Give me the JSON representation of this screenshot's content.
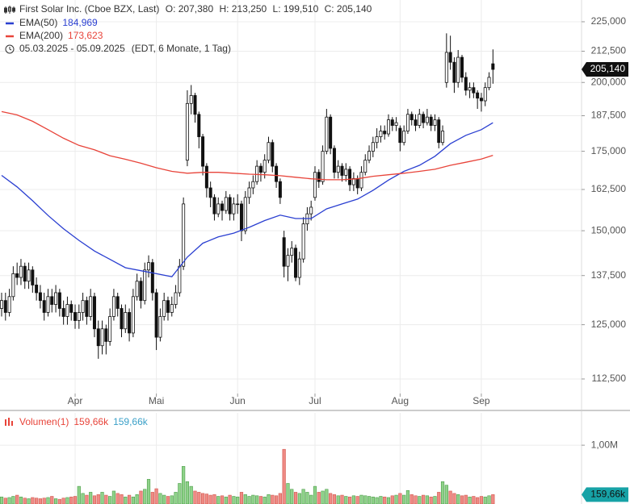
{
  "chart_data": [
    {
      "type": "candlestick",
      "title": "First Solar Inc. (Cboe BZX, Last)",
      "quote_labels": [
        "O: 207,380",
        "H: 213,250",
        "L: 199,510",
        "C: 205,140"
      ],
      "period": "05.03.2025 - 05.09.2025",
      "period_note": "(EDT, 6 Monate, 1 Tag)",
      "last_label": "205,140",
      "xlim": [
        -0.42,
        149.9
      ],
      "xticks": [
        {
          "value": 19,
          "label": "Apr"
        },
        {
          "value": 40,
          "label": "Mai"
        },
        {
          "value": 61,
          "label": "Jun"
        },
        {
          "value": 81,
          "label": "Jul"
        },
        {
          "value": 103,
          "label": "Aug"
        },
        {
          "value": 124,
          "label": "Sep"
        }
      ],
      "ylim": [
        106000,
        234700
      ],
      "log_scale": true,
      "grid": true,
      "yticks": [
        {
          "value": 112500,
          "label": "112,500"
        },
        {
          "value": 125000,
          "label": "125,000"
        },
        {
          "value": 137500,
          "label": "137,500"
        },
        {
          "value": 150000,
          "label": "150,000"
        },
        {
          "value": 162500,
          "label": "162,500"
        },
        {
          "value": 175000,
          "label": "175,000"
        },
        {
          "value": 187500,
          "label": "187,500"
        },
        {
          "value": 200000,
          "label": "200,000"
        },
        {
          "value": 212500,
          "label": "212,500"
        },
        {
          "value": 225000,
          "label": "225,000"
        }
      ],
      "up_color": "#ffffff",
      "down_color": "#111111",
      "open": [
        129000,
        131000,
        128000,
        132000,
        138000,
        137000,
        140000,
        136000,
        139000,
        135000,
        133000,
        131000,
        128000,
        132000,
        130000,
        133000,
        129000,
        127000,
        130000,
        128000,
        126000,
        128000,
        131000,
        127000,
        132000,
        124000,
        120000,
        124000,
        121000,
        127000,
        132000,
        129000,
        124000,
        128000,
        123000,
        132000,
        136000,
        131000,
        139000,
        141000,
        133000,
        122000,
        127000,
        131000,
        128000,
        130000,
        133000,
        140000,
        172000,
        192000,
        195000,
        188000,
        180000,
        170000,
        163000,
        160000,
        155000,
        158000,
        156000,
        160000,
        155000,
        158000,
        158000,
        150000,
        160000,
        163000,
        165000,
        170000,
        168000,
        172000,
        178000,
        170000,
        165000,
        148000,
        140000,
        143000,
        145000,
        137000,
        142000,
        152000,
        155000,
        160000,
        168000,
        165000,
        175000,
        187000,
        176000,
        168000,
        170000,
        167000,
        169000,
        164000,
        166000,
        163000,
        168000,
        172000,
        175000,
        178000,
        180000,
        182000,
        181000,
        186000,
        184000,
        183000,
        178000,
        182000,
        188000,
        186000,
        184000,
        188000,
        185000,
        187000,
        184000,
        186000,
        178000,
        200000,
        212000,
        208000,
        200000,
        210000,
        202000,
        197000,
        198000,
        196000,
        194000,
        193000,
        198000,
        207380
      ],
      "high": [
        133000,
        133000,
        134000,
        140000,
        141000,
        142000,
        141000,
        141000,
        140000,
        137000,
        135000,
        133000,
        134000,
        134000,
        135000,
        134000,
        131000,
        132000,
        131000,
        130000,
        130000,
        133000,
        132000,
        134000,
        133000,
        126000,
        126000,
        125000,
        129000,
        134000,
        133000,
        130000,
        130000,
        129000,
        134000,
        138000,
        137000,
        141000,
        143000,
        142000,
        134000,
        129000,
        133000,
        132000,
        132000,
        135000,
        142000,
        160000,
        197000,
        199000,
        196000,
        189000,
        181000,
        171000,
        165000,
        161000,
        160000,
        159000,
        162000,
        161000,
        160000,
        161000,
        159000,
        162000,
        165000,
        167000,
        172000,
        171000,
        174000,
        180000,
        179000,
        171000,
        166000,
        150000,
        145000,
        147000,
        146000,
        144000,
        154000,
        157000,
        159000,
        170000,
        169000,
        177000,
        190000,
        188000,
        177000,
        172000,
        171000,
        171000,
        170000,
        168000,
        167000,
        170000,
        174000,
        177000,
        180000,
        183000,
        184000,
        184000,
        188000,
        187000,
        187000,
        184000,
        184000,
        190000,
        189000,
        188000,
        190000,
        189000,
        190000,
        188000,
        188000,
        187000,
        184000,
        220000,
        219000,
        210000,
        213000,
        211000,
        204000,
        200000,
        200000,
        197000,
        196000,
        200000,
        204000,
        213250
      ],
      "low": [
        127000,
        126000,
        127000,
        131000,
        135000,
        135000,
        134000,
        134000,
        133000,
        131000,
        129000,
        126000,
        127000,
        128000,
        128000,
        127000,
        125000,
        125000,
        126000,
        124000,
        124000,
        126000,
        125000,
        126000,
        122000,
        117000,
        118000,
        118000,
        120000,
        126000,
        127000,
        122000,
        123000,
        121000,
        122000,
        131000,
        129000,
        130000,
        137000,
        131000,
        119000,
        121000,
        126000,
        126000,
        127000,
        129000,
        132000,
        139000,
        170000,
        188000,
        185000,
        176000,
        167000,
        160000,
        157000,
        153000,
        154000,
        153000,
        155000,
        153000,
        153000,
        155000,
        147000,
        149000,
        158000,
        161000,
        164000,
        165000,
        166000,
        171000,
        168000,
        163000,
        158000,
        137000,
        136000,
        141000,
        136000,
        135000,
        141000,
        150000,
        153000,
        159000,
        163000,
        164000,
        174000,
        174000,
        166000,
        166000,
        165000,
        165000,
        162000,
        162000,
        161000,
        162000,
        167000,
        171000,
        173000,
        176000,
        178000,
        179000,
        180000,
        182000,
        182000,
        175000,
        177000,
        181000,
        184000,
        182000,
        183000,
        183000,
        184000,
        182000,
        182000,
        176000,
        177000,
        198000,
        205000,
        196000,
        198000,
        200000,
        195000,
        194000,
        194000,
        190000,
        189000,
        191000,
        197000,
        199510
      ],
      "close": [
        131000,
        128000,
        132000,
        138000,
        137000,
        140000,
        136000,
        139000,
        135000,
        133000,
        131000,
        128000,
        132000,
        130000,
        133000,
        129000,
        127000,
        130000,
        128000,
        126000,
        128000,
        131000,
        127000,
        132000,
        124000,
        120000,
        124000,
        121000,
        127000,
        132000,
        129000,
        124000,
        128000,
        123000,
        132000,
        136000,
        131000,
        139000,
        141000,
        133000,
        122000,
        127000,
        131000,
        128000,
        130000,
        133000,
        140000,
        158000,
        192000,
        195000,
        188000,
        180000,
        170000,
        163000,
        160000,
        155000,
        158000,
        156000,
        160000,
        155000,
        158000,
        158000,
        150000,
        160000,
        163000,
        165000,
        170000,
        168000,
        172000,
        178000,
        170000,
        165000,
        160000,
        140000,
        143000,
        145000,
        137000,
        142000,
        152000,
        155000,
        157000,
        168000,
        165000,
        175000,
        187000,
        176000,
        168000,
        170000,
        167000,
        169000,
        164000,
        166000,
        163000,
        168000,
        172000,
        175000,
        178000,
        180000,
        182000,
        181000,
        186000,
        184000,
        185000,
        178000,
        182000,
        188000,
        186000,
        184000,
        188000,
        185000,
        187000,
        184000,
        186000,
        178000,
        182000,
        212000,
        208000,
        200000,
        210000,
        202000,
        197000,
        198000,
        196000,
        194000,
        193000,
        198000,
        202000,
        205140
      ],
      "series": [
        {
          "name": "EMA(50)",
          "color": "#2a3fd1",
          "label": "184,969",
          "x": [
            0,
            4,
            8,
            12,
            16,
            20,
            24,
            28,
            32,
            36,
            40,
            44,
            48,
            52,
            56,
            60,
            64,
            68,
            72,
            76,
            80,
            84,
            88,
            92,
            96,
            100,
            104,
            108,
            112,
            116,
            120,
            124,
            127
          ],
          "values": [
            167000,
            163300,
            159000,
            154500,
            150600,
            147200,
            144200,
            141900,
            139600,
            138800,
            138000,
            137200,
            142500,
            146400,
            148200,
            149300,
            151000,
            153000,
            154600,
            153600,
            153600,
            156500,
            158000,
            159500,
            162200,
            165500,
            168300,
            170300,
            173300,
            177600,
            180500,
            182500,
            184969
          ]
        },
        {
          "name": "EMA(200)",
          "color": "#e8443a",
          "label": "173,623",
          "x": [
            0,
            4,
            8,
            12,
            16,
            20,
            24,
            28,
            32,
            36,
            40,
            44,
            48,
            52,
            56,
            60,
            64,
            68,
            72,
            76,
            80,
            84,
            88,
            92,
            96,
            100,
            104,
            108,
            112,
            116,
            120,
            124,
            127
          ],
          "values": [
            189000,
            187800,
            185500,
            182500,
            179500,
            177000,
            175500,
            173500,
            172300,
            171000,
            169500,
            168300,
            167700,
            168000,
            168000,
            167700,
            167400,
            167200,
            166900,
            166400,
            165900,
            165600,
            165600,
            165900,
            166700,
            167200,
            167700,
            168300,
            169000,
            170300,
            171300,
            172400,
            173623
          ]
        }
      ]
    },
    {
      "type": "bar",
      "title": "Volumen(1)",
      "value_label": "159,66k",
      "ylim": [
        0,
        1550000
      ],
      "yticks": [
        {
          "value": 1000000,
          "label": "1,00M"
        }
      ],
      "up_color": "#8fd28a",
      "down_color": "#ef8a84",
      "values": [
        120000,
        100000,
        110000,
        130000,
        150000,
        120000,
        100000,
        90000,
        110000,
        100000,
        90000,
        100000,
        110000,
        130000,
        90000,
        80000,
        100000,
        110000,
        120000,
        130000,
        300000,
        180000,
        150000,
        200000,
        140000,
        160000,
        200000,
        150000,
        130000,
        220000,
        180000,
        160000,
        120000,
        150000,
        120000,
        160000,
        220000,
        250000,
        420000,
        200000,
        260000,
        180000,
        150000,
        130000,
        140000,
        200000,
        350000,
        640000,
        380000,
        300000,
        220000,
        200000,
        180000,
        170000,
        150000,
        160000,
        130000,
        140000,
        120000,
        150000,
        130000,
        120000,
        200000,
        160000,
        130000,
        150000,
        140000,
        130000,
        120000,
        160000,
        150000,
        140000,
        180000,
        930000,
        350000,
        250000,
        200000,
        180000,
        250000,
        200000,
        150000,
        300000,
        200000,
        220000,
        250000,
        180000,
        160000,
        140000,
        150000,
        130000,
        120000,
        140000,
        130000,
        150000,
        140000,
        130000,
        120000,
        110000,
        130000,
        120000,
        110000,
        140000,
        150000,
        180000,
        150000,
        230000,
        160000,
        140000,
        130000,
        150000,
        140000,
        120000,
        130000,
        200000,
        380000,
        320000,
        220000,
        180000,
        160000,
        140000,
        150000,
        120000,
        130000,
        110000,
        130000,
        120000,
        140000,
        159660
      ]
    }
  ]
}
